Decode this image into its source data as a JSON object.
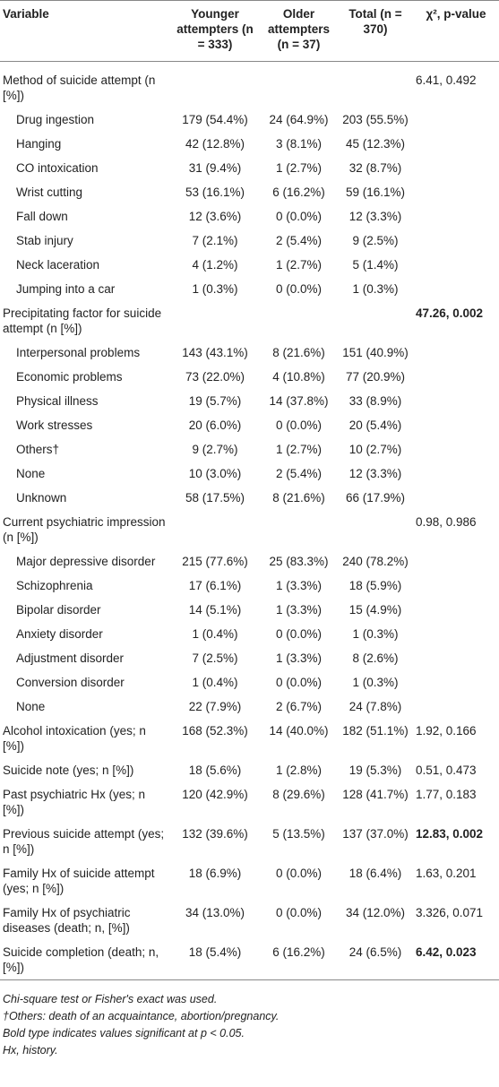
{
  "table": {
    "header": [
      "Variable",
      "Younger attempters (n = 333)",
      "Older attempters (n = 37)",
      "Total (n = 370)",
      "χ², p-value"
    ],
    "body": [
      {
        "label": "Method of suicide attempt (n [%])",
        "stat": "6.41, 0.492",
        "items": [
          {
            "label": "Drug ingestion",
            "values": [
              "179 (54.4%)",
              "24 (64.9%)",
              "203 (55.5%)"
            ]
          },
          {
            "label": "Hanging",
            "values": [
              "42 (12.8%)",
              "3 (8.1%)",
              "45 (12.3%)"
            ]
          },
          {
            "label": "CO intoxication",
            "values": [
              "31 (9.4%)",
              "1 (2.7%)",
              "32 (8.7%)"
            ]
          },
          {
            "label": "Wrist cutting",
            "values": [
              "53 (16.1%)",
              "6 (16.2%)",
              "59 (16.1%)"
            ]
          },
          {
            "label": "Fall down",
            "values": [
              "12 (3.6%)",
              "0 (0.0%)",
              "12 (3.3%)"
            ]
          },
          {
            "label": "Stab injury",
            "values": [
              "7 (2.1%)",
              "2 (5.4%)",
              "9 (2.5%)"
            ]
          },
          {
            "label": "Neck laceration",
            "values": [
              "4 (1.2%)",
              "1 (2.7%)",
              "5 (1.4%)"
            ]
          },
          {
            "label": "Jumping into a car",
            "values": [
              "1 (0.3%)",
              "0 (0.0%)",
              "1 (0.3%)"
            ]
          }
        ]
      },
      {
        "label": "Precipitating factor for suicide attempt (n [%])",
        "stat": "47.26, 0.002",
        "bold": true,
        "items": [
          {
            "label": "Interpersonal problems",
            "values": [
              "143 (43.1%)",
              "8 (21.6%)",
              "151 (40.9%)"
            ]
          },
          {
            "label": "Economic problems",
            "values": [
              "73 (22.0%)",
              "4 (10.8%)",
              "77 (20.9%)"
            ]
          },
          {
            "label": "Physical illness",
            "values": [
              "19 (5.7%)",
              "14 (37.8%)",
              "33 (8.9%)"
            ]
          },
          {
            "label": "Work stresses",
            "values": [
              "20 (6.0%)",
              "0 (0.0%)",
              "20 (5.4%)"
            ]
          },
          {
            "label": "Others†",
            "values": [
              "9 (2.7%)",
              "1 (2.7%)",
              "10 (2.7%)"
            ]
          },
          {
            "label": "None",
            "values": [
              "10 (3.0%)",
              "2 (5.4%)",
              "12 (3.3%)"
            ]
          },
          {
            "label": "Unknown",
            "values": [
              "58 (17.5%)",
              "8 (21.6%)",
              "66 (17.9%)"
            ]
          }
        ]
      },
      {
        "label": "Current psychiatric impression (n [%])",
        "stat": "0.98, 0.986",
        "items": [
          {
            "label": "Major depressive disorder",
            "values": [
              "215 (77.6%)",
              "25 (83.3%)",
              "240 (78.2%)"
            ]
          },
          {
            "label": "Schizophrenia",
            "values": [
              "17 (6.1%)",
              "1 (3.3%)",
              "18 (5.9%)"
            ]
          },
          {
            "label": "Bipolar disorder",
            "values": [
              "14 (5.1%)",
              "1 (3.3%)",
              "15 (4.9%)"
            ]
          },
          {
            "label": "Anxiety disorder",
            "values": [
              "1 (0.4%)",
              "0 (0.0%)",
              "1 (0.3%)"
            ]
          },
          {
            "label": "Adjustment disorder",
            "values": [
              "7 (2.5%)",
              "1 (3.3%)",
              "8 (2.6%)"
            ]
          },
          {
            "label": "Conversion disorder",
            "values": [
              "1 (0.4%)",
              "0 (0.0%)",
              "1 (0.3%)"
            ]
          },
          {
            "label": "None",
            "values": [
              "22 (7.9%)",
              "2 (6.7%)",
              "24 (7.8%)"
            ]
          }
        ]
      },
      {
        "label": "Alcohol intoxication (yes; n [%])",
        "values": [
          "168 (52.3%)",
          "14 (40.0%)",
          "182 (51.1%)"
        ],
        "stat": "1.92, 0.166"
      },
      {
        "label": "Suicide note (yes; n [%])",
        "values": [
          "18 (5.6%)",
          "1 (2.8%)",
          "19 (5.3%)"
        ],
        "stat": "0.51, 0.473"
      },
      {
        "label": "Past psychiatric Hx (yes; n [%])",
        "values": [
          "120 (42.9%)",
          "8 (29.6%)",
          "128 (41.7%)"
        ],
        "stat": "1.77, 0.183"
      },
      {
        "label": "Previous suicide attempt (yes; n [%])",
        "values": [
          "132 (39.6%)",
          "5 (13.5%)",
          "137 (37.0%)"
        ],
        "stat": "12.83, 0.002",
        "bold": true
      },
      {
        "label": "Family Hx of suicide attempt (yes; n [%])",
        "values": [
          "18 (6.9%)",
          "0 (0.0%)",
          "18 (6.4%)"
        ],
        "stat": "1.63, 0.201"
      },
      {
        "label": "Family Hx of psychiatric diseases (death; n, [%])",
        "values": [
          "34 (13.0%)",
          "0 (0.0%)",
          "34 (12.0%)"
        ],
        "stat": "3.326, 0.071"
      },
      {
        "label": "Suicide completion (death; n, [%])",
        "values": [
          "18 (5.4%)",
          "6 (16.2%)",
          "24 (6.5%)"
        ],
        "stat": "6.42, 0.023",
        "bold": true
      }
    ],
    "footnotes": [
      "Chi-square test or Fisher's exact was used.",
      "†Others: death of an acquaintance, abortion/pregnancy.",
      "Bold type indicates values significant at p < 0.05.",
      "Hx, history."
    ]
  }
}
